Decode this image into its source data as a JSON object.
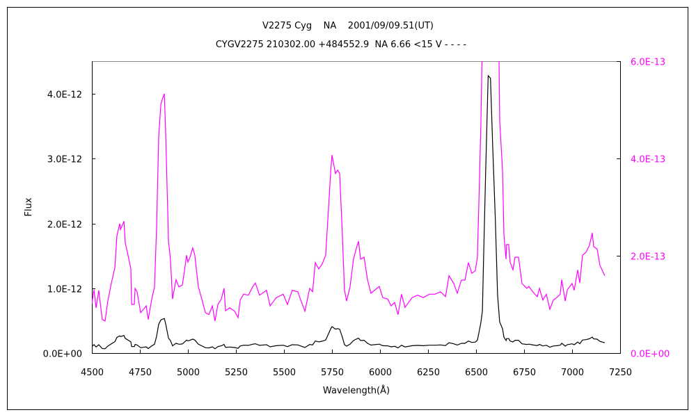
{
  "chart_data": {
    "type": "line",
    "title": "V2275 Cyg    NA    2001/09/09.51(UT)",
    "subtitle": "CYGV2275 210302.00 +484552.9  NA 6.66 <15 V - - - -",
    "xlabel": "Wavelength(Å)",
    "ylabel": "Flux",
    "xlim": [
      4500,
      7250
    ],
    "x_ticks": [
      "4500",
      "4750",
      "5000",
      "5250",
      "5500",
      "5750",
      "6000",
      "6250",
      "6500",
      "6750",
      "7000",
      "7250"
    ],
    "ylim_left": [
      0,
      4.5e-12
    ],
    "y_ticks_left": [
      {
        "value": 0,
        "label": "0.0E+00"
      },
      {
        "value": 1e-12,
        "label": "1.0E-12"
      },
      {
        "value": 2e-12,
        "label": "2.0E-12"
      },
      {
        "value": 3e-12,
        "label": "3.0E-12"
      },
      {
        "value": 4e-12,
        "label": "4.0E-12"
      }
    ],
    "ylim_right": [
      0,
      6e-13
    ],
    "y_ticks_right": [
      {
        "value": 0,
        "label": "0.0E+00"
      },
      {
        "value": 2e-13,
        "label": "2.0E-13"
      },
      {
        "value": 4e-13,
        "label": "4.0E-13"
      },
      {
        "value": 6e-13,
        "label": "6.0E-13"
      }
    ],
    "grid": false,
    "legend": "none",
    "series": [
      {
        "axis": "left",
        "color": "#000000"
      },
      {
        "axis": "right",
        "color": "#ff00ff"
      }
    ],
    "x": [
      4500,
      4511,
      4522,
      4536,
      4554,
      4569,
      4583,
      4601,
      4620,
      4630,
      4645,
      4649,
      4667,
      4674,
      4685,
      4703,
      4707,
      4721,
      4725,
      4735,
      4754,
      4783,
      4793,
      4812,
      4826,
      4837,
      4848,
      4859,
      4866,
      4877,
      4884,
      4899,
      4909,
      4920,
      4938,
      4953,
      4971,
      4982,
      4993,
      5000,
      5011,
      5025,
      5036,
      5054,
      5072,
      5091,
      5109,
      5127,
      5141,
      5156,
      5174,
      5188,
      5196,
      5217,
      5243,
      5261,
      5272,
      5290,
      5315,
      5337,
      5351,
      5373,
      5409,
      5428,
      5460,
      5496,
      5518,
      5543,
      5572,
      5587,
      5609,
      5634,
      5649,
      5663,
      5681,
      5699,
      5717,
      5732,
      5743,
      5750,
      5768,
      5779,
      5790,
      5804,
      5815,
      5826,
      5844,
      5862,
      5877,
      5888,
      5899,
      5917,
      5935,
      5953,
      5996,
      6014,
      6040,
      6058,
      6076,
      6094,
      6112,
      6130,
      6167,
      6196,
      6225,
      6257,
      6286,
      6315,
      6341,
      6359,
      6384,
      6402,
      6424,
      6442,
      6460,
      6478,
      6496,
      6507,
      6514,
      6525,
      6533,
      6540,
      6550,
      6563,
      6575,
      6587,
      6600,
      6612,
      6623,
      6638,
      6645,
      6656,
      6659,
      6670,
      6677,
      6692,
      6703,
      6721,
      6739,
      6764,
      6775,
      6801,
      6819,
      6830,
      6848,
      6866,
      6884,
      6902,
      6920,
      6938,
      6946,
      6964,
      6975,
      7000,
      7011,
      7029,
      7040,
      7054,
      7072,
      7090,
      7105,
      7112,
      7130,
      7145,
      7170
    ],
    "y": [
      1.01e-13,
      1.3e-13,
      9.3e-14,
      1.29e-13,
      6.9e-14,
      6.6e-14,
      1.07e-13,
      1.43e-13,
      1.76e-13,
      2.4e-13,
      2.66e-13,
      2.54e-13,
      2.71e-13,
      2.26e-13,
      2.07e-13,
      1.73e-13,
      1e-13,
      1e-13,
      1.33e-13,
      1.26e-13,
      8.3e-14,
      9.7e-14,
      6.9e-14,
      1.11e-13,
      1.36e-13,
      2.59e-13,
      4.44e-13,
      5.11e-13,
      5.21e-13,
      5.33e-13,
      4.54e-13,
      2.3e-13,
      1.93e-13,
      1.11e-13,
      1.51e-13,
      1.36e-13,
      1.4e-13,
      1.69e-13,
      2.01e-13,
      1.87e-13,
      1.97e-13,
      2.16e-13,
      2.01e-13,
      1.37e-13,
      1.11e-13,
      8.3e-14,
      7.9e-14,
      9.7e-14,
      6.6e-14,
      1e-13,
      1.11e-13,
      1.33e-13,
      8.7e-14,
      9.3e-14,
      8.6e-14,
      7.3e-14,
      1.09e-13,
      1.21e-13,
      1.19e-13,
      1.36e-13,
      1.44e-13,
      1.19e-13,
      1.29e-13,
      9.7e-14,
      1.14e-13,
      1.21e-13,
      1e-13,
      1.29e-13,
      1.26e-13,
      1.09e-13,
      8.6e-14,
      1.33e-13,
      1.26e-13,
      1.86e-13,
      1.73e-13,
      1.83e-13,
      2.01e-13,
      2.97e-13,
      3.73e-13,
      4.07e-13,
      3.69e-13,
      3.76e-13,
      3.69e-13,
      2.44e-13,
      1.3e-13,
      1.07e-13,
      1.36e-13,
      1.93e-13,
      2.16e-13,
      2.3e-13,
      1.93e-13,
      1.97e-13,
      1.5e-13,
      1.23e-13,
      1.37e-13,
      1.14e-13,
      1.11e-13,
      9.7e-14,
      1.04e-13,
      7.9e-14,
      1.21e-13,
      9.4e-14,
      1.14e-13,
      1.19e-13,
      1.14e-13,
      1.21e-13,
      1.21e-13,
      1.26e-13,
      1.16e-13,
      1.59e-13,
      1.43e-13,
      1.23e-13,
      1.5e-13,
      1.5e-13,
      1.86e-13,
      1.64e-13,
      1.69e-13,
      1.97e-13,
      3.01e-13,
      4.69e-13,
      6.5e-13,
      1.55e-12,
      2.8e-12,
      4.28e-12,
      4.24e-12,
      3.16e-12,
      2.09e-12,
      9e-13,
      4.8e-13,
      3.73e-13,
      2.44e-13,
      1.93e-13,
      2.23e-13,
      2.23e-13,
      1.87e-13,
      1.71e-13,
      1.97e-13,
      1.97e-13,
      1.43e-13,
      1.33e-13,
      1.37e-13,
      1.23e-13,
      1.16e-13,
      1.33e-13,
      1.09e-13,
      1.21e-13,
      9e-14,
      1.09e-13,
      1.14e-13,
      1.21e-13,
      1.51e-13,
      1.07e-13,
      1.3e-13,
      1.43e-13,
      1.29e-13,
      1.71e-13,
      1.44e-13,
      2.01e-13,
      2.07e-13,
      2.21e-13,
      2.47e-13,
      2.19e-13,
      2.14e-13,
      1.8e-13,
      1.59e-13
    ]
  }
}
